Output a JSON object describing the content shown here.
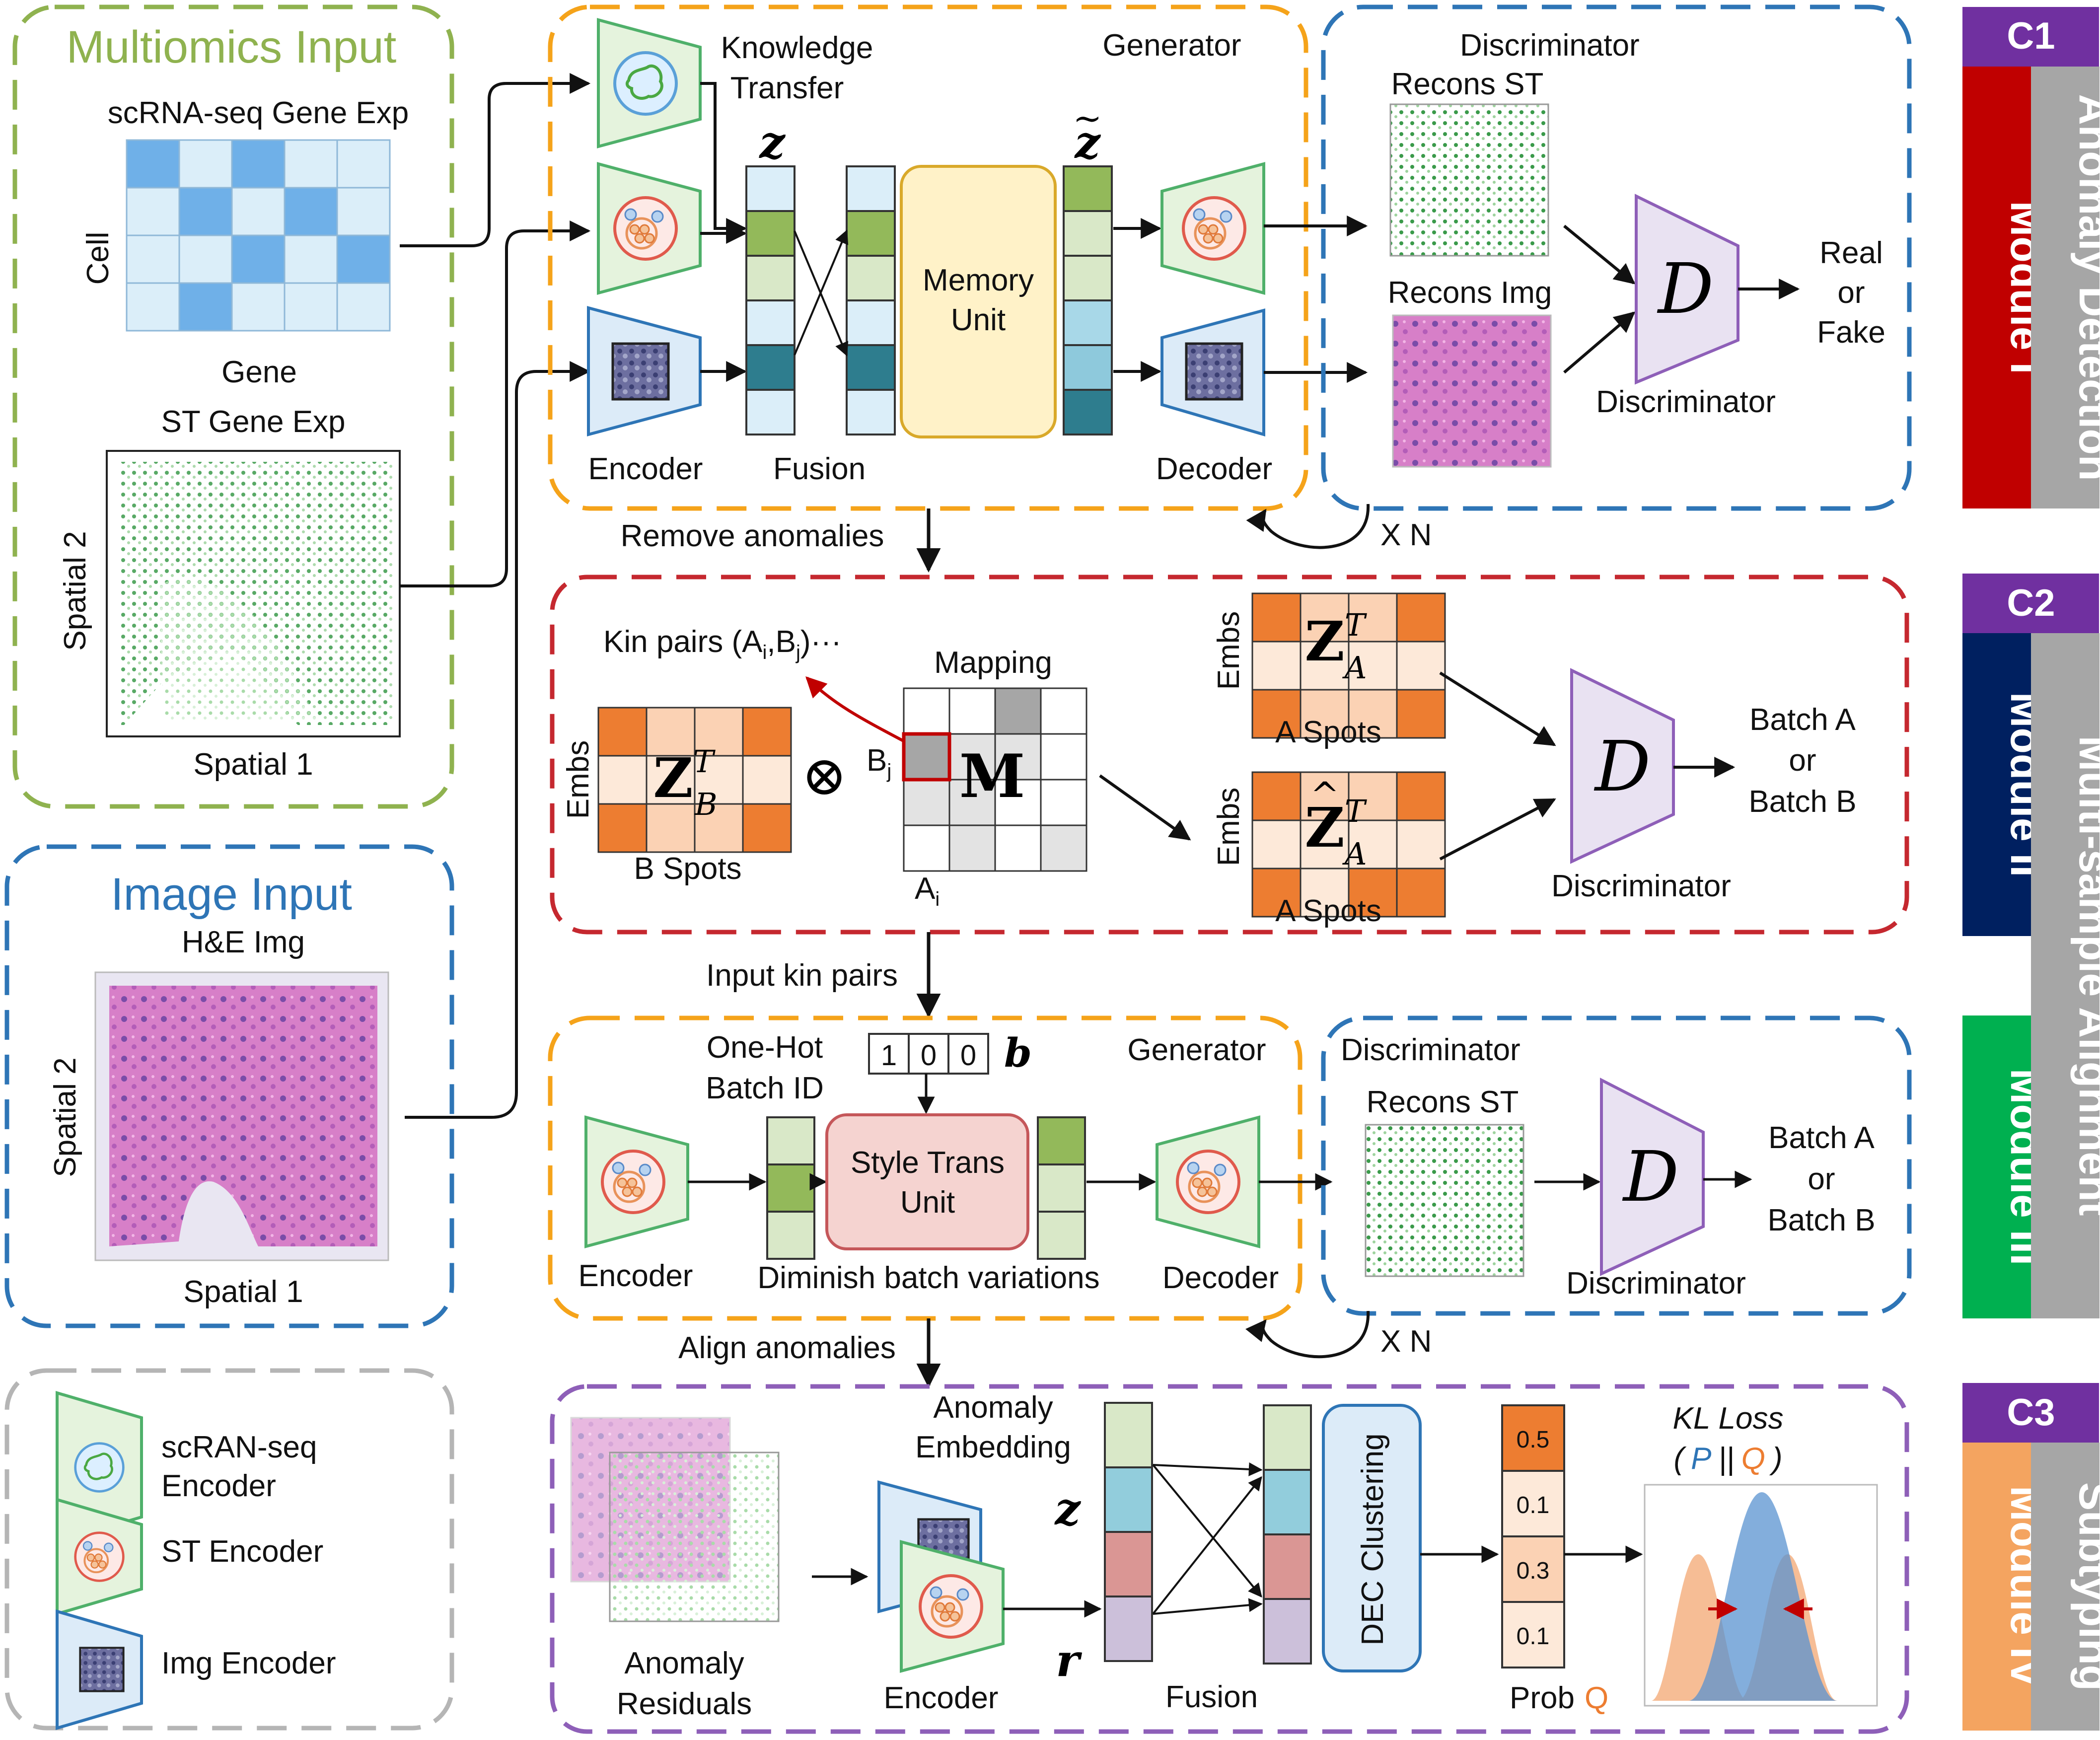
{
  "colors": {
    "green_box": "#8fb24f",
    "blue_box": "#2e75b6",
    "orange_box": "#f5a31a",
    "red_box": "#c5282f",
    "purple_box": "#8e5fb8",
    "gray_box": "#b5b5b5",
    "module1": "#c00000",
    "module2": "#002060",
    "module3": "#00b050",
    "module4": "#f4a460",
    "tag": "#7030a0",
    "strip": "#a6a6a6"
  },
  "multiomics": {
    "title": "Multiomics Input",
    "scrna_label": "scRNA-seq Gene Exp",
    "cell_label": "Cell",
    "gene_label": "Gene",
    "st_label": "ST Gene Exp",
    "spatial2": "Spatial 2",
    "spatial1": "Spatial 1"
  },
  "image_input": {
    "title": "Image Input",
    "he_label": "H&E Img",
    "spatial2": "Spatial 2",
    "spatial1": "Spatial 1"
  },
  "legend": {
    "scran_1": "scRAN-seq",
    "scran_2": "Encoder",
    "st_enc": "ST Encoder",
    "img_enc": "Img Encoder"
  },
  "c1": {
    "generator_title": "Generator",
    "knowledge_1": "Knowledge",
    "knowledge_2": "Transfer",
    "z": "z",
    "z_tilde": "z",
    "memory_1": "Memory",
    "memory_2": "Unit",
    "encoder": "Encoder",
    "fusion": "Fusion",
    "decoder": "Decoder",
    "discriminator_title": "Discriminator",
    "recons_st": "Recons ST",
    "recons_img": "Recons Img",
    "D": "D",
    "real": "Real",
    "or": "or",
    "fake": "Fake",
    "discriminator": "Discriminator",
    "xn": "X N",
    "remove": "Remove anomalies"
  },
  "c2": {
    "kin_pairs": "Kin pairs (A",
    "kin_i": "i",
    "kin_mid": ",B",
    "kin_j": "j",
    "kin_end": ")···",
    "mapping": "Mapping",
    "embs": "Embs",
    "b_spots": "B Spots",
    "zb": "Z",
    "zb_sup": "T",
    "zb_sub": "B",
    "otimes": "⊗",
    "bj": "B",
    "bj_sub": "j",
    "M": "M",
    "ai": "A",
    "ai_sub": "i",
    "za": "Z",
    "za_sup": "T",
    "za_sub": "A",
    "za_hat": "^",
    "a_spots": "A Spots",
    "D": "D",
    "batch_a": "Batch A",
    "or": "or",
    "batch_b": "Batch B",
    "discriminator": "Discriminator",
    "input_kin": "Input kin pairs"
  },
  "c3": {
    "onehot_1": "One-Hot",
    "onehot_2": "Batch ID",
    "bits": [
      "1",
      "0",
      "0"
    ],
    "b": "b",
    "generator_title": "Generator",
    "style_1": "Style Trans",
    "style_2": "Unit",
    "encoder": "Encoder",
    "diminish": "Diminish batch variations",
    "decoder": "Decoder",
    "discriminator_title": "Discriminator",
    "recons_st": "Recons ST",
    "D": "D",
    "batch_a": "Batch A",
    "or": "or",
    "batch_b": "Batch B",
    "discriminator": "Discriminator",
    "xn": "X N",
    "align": "Align anomalies"
  },
  "c4": {
    "anomaly_emb_1": "Anomaly",
    "anomaly_emb_2": "Embedding",
    "z": "z",
    "r": "r",
    "residuals_1": "Anomaly",
    "residuals_2": "Residuals",
    "encoder": "Encoder",
    "fusion": "Fusion",
    "dec": "DEC Clustering",
    "probs": [
      "0.5",
      "0.1",
      "0.3",
      "0.1"
    ],
    "prob": "Prob",
    "q": "Q",
    "kl": "KL Loss",
    "kl_open": "(",
    "kl_p": "P",
    "kl_sep": "||",
    "kl_q": "Q",
    "kl_close": ")"
  },
  "side": {
    "c1": "C1",
    "c2": "C2",
    "c3": "C3",
    "module1": "Module I",
    "module2": "Module II",
    "module3": "Module III",
    "module4": "Module IV",
    "anomaly_detection": "Anomaly Detection",
    "multi_sample": "Multi-sample Alignment",
    "subtyping": "Subtyping"
  }
}
